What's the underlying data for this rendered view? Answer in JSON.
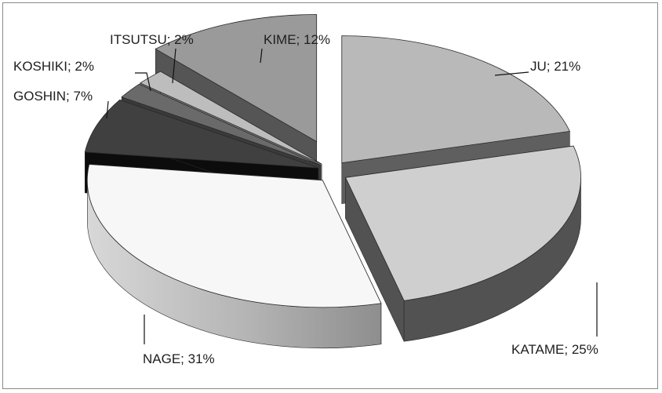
{
  "chart_data": {
    "type": "pie",
    "title": "",
    "three_d": true,
    "exploded": true,
    "slices": [
      {
        "name": "JU",
        "value": 21,
        "label": "JU; 21%",
        "top_color": "#b9b9b9",
        "side_color": "#5f5f5f"
      },
      {
        "name": "KATAME",
        "value": 25,
        "label": "KATAME; 25%",
        "top_color": "#cfcfcf",
        "side_color": "#525252"
      },
      {
        "name": "NAGE",
        "value": 31,
        "label": "NAGE; 31%",
        "top_color": "#f7f7f7",
        "side_color": "#a7a7a7"
      },
      {
        "name": "GOSHIN",
        "value": 7,
        "label": "GOSHIN; 7%",
        "top_color": "#404040",
        "side_color": "#0c0c0c"
      },
      {
        "name": "KOSHIKI",
        "value": 2,
        "label": "KOSHIKI; 2%",
        "top_color": "#6a6a6a",
        "side_color": "#3a3a3a"
      },
      {
        "name": "ITSUTSU",
        "value": 2,
        "label": "ITSUTSU; 2%",
        "top_color": "#bdbdbd",
        "side_color": "#7a7a7a"
      },
      {
        "name": "KIME",
        "value": 12,
        "label": "KIME; 12%",
        "top_color": "#9a9a9a",
        "side_color": "#555555"
      }
    ]
  }
}
